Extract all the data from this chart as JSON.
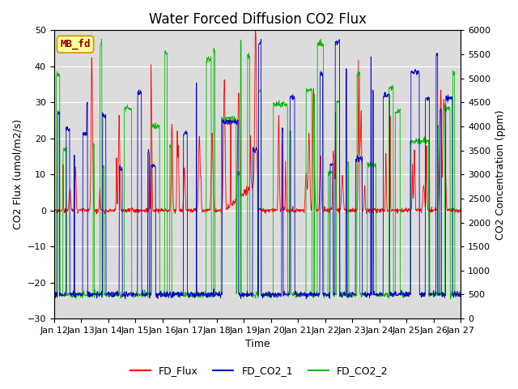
{
  "title": "Water Forced Diffusion CO2 Flux",
  "xlabel": "Time",
  "ylabel_left": "CO2 Flux (umol/m2/s)",
  "ylabel_right": "CO2 Concentration (ppm)",
  "ylim_left": [
    -30,
    50
  ],
  "ylim_right": [
    0,
    6000
  ],
  "x_tick_labels": [
    "Jan 12",
    "Jan 13",
    "Jan 14",
    "Jan 15",
    "Jan 16",
    "Jan 17",
    "Jan 18",
    "Jan 19",
    "Jan 20",
    "Jan 21",
    "Jan 22",
    "Jan 23",
    "Jan 24",
    "Jan 25",
    "Jan 26",
    "Jan 27"
  ],
  "color_flux": "#ff0000",
  "color_co2_1": "#0000cc",
  "color_co2_2": "#00bb00",
  "bg_color": "#dcdcdc",
  "mb_fd_label": "MB_fd",
  "mb_fd_text_color": "#8b0000",
  "mb_fd_box_color": "#ffff99",
  "legend_labels": [
    "FD_Flux",
    "FD_CO2_1",
    "FD_CO2_2"
  ],
  "title_fontsize": 12,
  "axis_fontsize": 9,
  "tick_fontsize": 8,
  "right_yticks": [
    0,
    500,
    1000,
    1500,
    2000,
    2500,
    3000,
    3500,
    4000,
    4500,
    5000,
    5500,
    6000
  ],
  "left_yticks": [
    -30,
    -20,
    -10,
    0,
    10,
    20,
    30,
    40,
    50
  ]
}
